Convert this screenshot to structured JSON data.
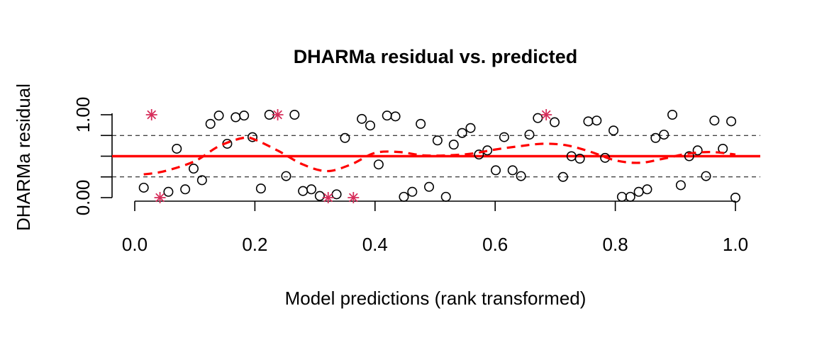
{
  "chart_data": {
    "type": "scatter",
    "title": "DHARMa residual vs. predicted",
    "xlabel": "Model predictions (rank transformed)",
    "ylabel": "DHARMa residual",
    "xlim": [
      -0.05,
      1.04
    ],
    "ylim": [
      -0.02,
      1.02
    ],
    "x_ticks": [
      "0.0",
      "0.2",
      "0.4",
      "0.6",
      "0.8",
      "1.0"
    ],
    "y_ticks": [
      "0.00",
      "1.00"
    ],
    "y_tick_positions": [
      0,
      0.25,
      0.5,
      0.75,
      1.0
    ],
    "reference_lines": {
      "dashed": [
        0.25,
        0.75
      ],
      "solid": 0.5,
      "solid_color": "#ff0000",
      "dashed_color": "#000000"
    },
    "points": [
      [
        0.015,
        0.12
      ],
      [
        0.056,
        0.07
      ],
      [
        0.07,
        0.59
      ],
      [
        0.084,
        0.1
      ],
      [
        0.098,
        0.35
      ],
      [
        0.112,
        0.21
      ],
      [
        0.126,
        0.89
      ],
      [
        0.14,
        0.99
      ],
      [
        0.154,
        0.65
      ],
      [
        0.168,
        0.97
      ],
      [
        0.182,
        0.99
      ],
      [
        0.196,
        0.73
      ],
      [
        0.21,
        0.11
      ],
      [
        0.224,
        1.0
      ],
      [
        0.252,
        0.26
      ],
      [
        0.266,
        1.0
      ],
      [
        0.28,
        0.08
      ],
      [
        0.294,
        0.1
      ],
      [
        0.308,
        0.02
      ],
      [
        0.336,
        0.04
      ],
      [
        0.35,
        0.72
      ],
      [
        0.378,
        0.95
      ],
      [
        0.392,
        0.87
      ],
      [
        0.406,
        0.4
      ],
      [
        0.42,
        0.99
      ],
      [
        0.434,
        0.98
      ],
      [
        0.448,
        0.01
      ],
      [
        0.462,
        0.07
      ],
      [
        0.476,
        0.89
      ],
      [
        0.49,
        0.13
      ],
      [
        0.504,
        0.69
      ],
      [
        0.518,
        0.01
      ],
      [
        0.531,
        0.64
      ],
      [
        0.545,
        0.78
      ],
      [
        0.559,
        0.84
      ],
      [
        0.573,
        0.52
      ],
      [
        0.587,
        0.57
      ],
      [
        0.601,
        0.33
      ],
      [
        0.615,
        0.73
      ],
      [
        0.629,
        0.33
      ],
      [
        0.643,
        0.26
      ],
      [
        0.657,
        0.76
      ],
      [
        0.671,
        0.96
      ],
      [
        0.699,
        0.91
      ],
      [
        0.713,
        0.25
      ],
      [
        0.727,
        0.5
      ],
      [
        0.741,
        0.47
      ],
      [
        0.755,
        0.92
      ],
      [
        0.769,
        0.93
      ],
      [
        0.783,
        0.48
      ],
      [
        0.797,
        0.81
      ],
      [
        0.811,
        0.01
      ],
      [
        0.825,
        0.01
      ],
      [
        0.839,
        0.07
      ],
      [
        0.853,
        0.1
      ],
      [
        0.867,
        0.72
      ],
      [
        0.881,
        0.76
      ],
      [
        0.895,
        1.0
      ],
      [
        0.909,
        0.15
      ],
      [
        0.923,
        0.5
      ],
      [
        0.937,
        0.57
      ],
      [
        0.951,
        0.26
      ],
      [
        0.965,
        0.93
      ],
      [
        0.979,
        0.59
      ],
      [
        0.993,
        0.92
      ],
      [
        1.0,
        0.0
      ]
    ],
    "outliers": [
      [
        0.028,
        1.0
      ],
      [
        0.042,
        0.0
      ],
      [
        0.238,
        1.0
      ],
      [
        0.322,
        0.0
      ],
      [
        0.364,
        0.0
      ],
      [
        0.685,
        1.0
      ]
    ],
    "outlier_color": "#d62d5a",
    "smooth_line": {
      "color": "#ff0000",
      "x": [
        0.015,
        0.05,
        0.1,
        0.14,
        0.18,
        0.2,
        0.24,
        0.28,
        0.32,
        0.36,
        0.4,
        0.44,
        0.48,
        0.52,
        0.56,
        0.6,
        0.64,
        0.68,
        0.72,
        0.76,
        0.8,
        0.84,
        0.88,
        0.92,
        0.96,
        1.0
      ],
      "y": [
        0.28,
        0.32,
        0.44,
        0.62,
        0.72,
        0.7,
        0.56,
        0.4,
        0.32,
        0.4,
        0.54,
        0.55,
        0.51,
        0.51,
        0.53,
        0.58,
        0.62,
        0.65,
        0.63,
        0.55,
        0.45,
        0.42,
        0.47,
        0.53,
        0.55,
        0.52
      ]
    }
  }
}
